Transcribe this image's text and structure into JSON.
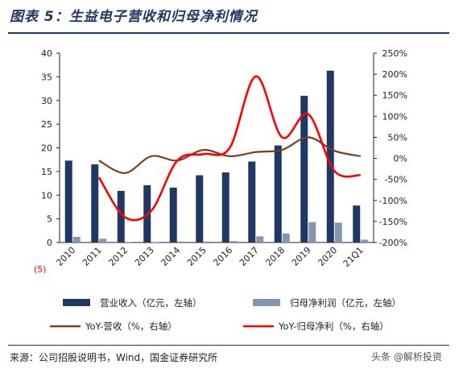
{
  "figure": {
    "title": "图表 5：生益电子营收和归母净利情况",
    "source": "来源：公司招股说明书，Wind，国金证券研究所",
    "watermark": "头条 @解析投资",
    "annotation": "(5)"
  },
  "chart_data": {
    "type": "bar",
    "categories": [
      "2010",
      "2011",
      "2012",
      "2013",
      "2014",
      "2015",
      "2016",
      "2017",
      "2018",
      "2019",
      "2020",
      "21Q1"
    ],
    "series": [
      {
        "name": "营业收入（亿元，左轴）",
        "kind": "bar",
        "axis": "left",
        "values": [
          17.3,
          16.5,
          10.9,
          12.1,
          11.6,
          14.2,
          14.8,
          17.1,
          20.5,
          31.0,
          36.3,
          7.8
        ]
      },
      {
        "name": "归母净利润（亿元，左轴）",
        "kind": "bar",
        "axis": "left",
        "values": [
          1.2,
          0.8,
          0.1,
          0.1,
          0.2,
          0.2,
          0.3,
          1.3,
          1.9,
          4.3,
          4.2,
          0.6
        ]
      },
      {
        "name": "YoY-营收（%，右轴）",
        "kind": "line",
        "axis": "right",
        "values": [
          null,
          -5,
          -35,
          5,
          -5,
          20,
          5,
          15,
          20,
          50,
          18,
          5
        ]
      },
      {
        "name": "YoY-归母净利（%，右轴）",
        "kind": "line",
        "axis": "right",
        "values": [
          null,
          -45,
          -140,
          -125,
          -5,
          10,
          25,
          195,
          50,
          105,
          -30,
          -40
        ]
      }
    ],
    "left_axis": {
      "ylim": [
        0,
        40
      ],
      "ticks": [
        "0",
        "5",
        "10",
        "15",
        "20",
        "25",
        "30",
        "35",
        "40"
      ],
      "tick_values": [
        0,
        5,
        10,
        15,
        20,
        25,
        30,
        35,
        40
      ]
    },
    "right_axis": {
      "ylim": [
        -200,
        250
      ],
      "ticks": [
        "-200%",
        "-150%",
        "-100%",
        "-50%",
        "0%",
        "50%",
        "100%",
        "150%",
        "200%",
        "250%"
      ],
      "tick_values": [
        -200,
        -150,
        -100,
        -50,
        0,
        50,
        100,
        150,
        200,
        250
      ]
    },
    "colors": {
      "revenue_bar": "#1f3864",
      "profit_bar": "#8497b0",
      "revenue_yoy": "#7b3f1d",
      "profit_yoy": "#ff0000"
    },
    "grid": false,
    "legend_position": "bottom"
  }
}
